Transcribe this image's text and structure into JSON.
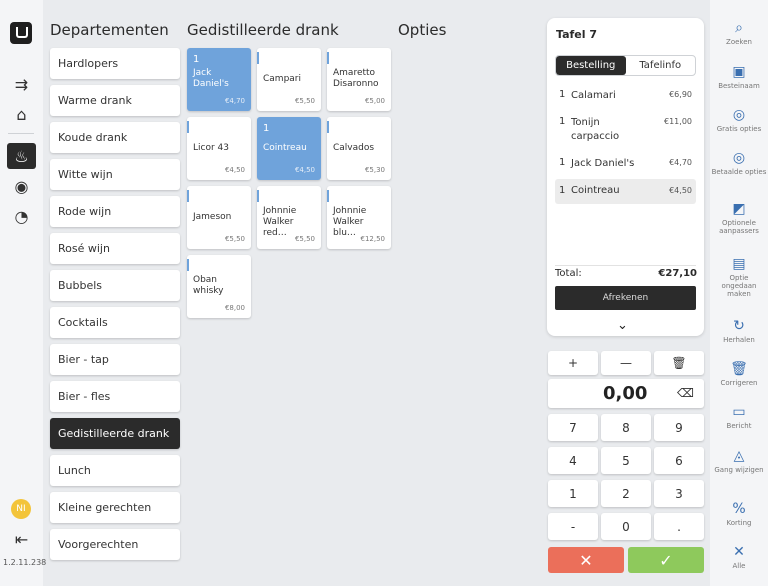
{
  "app": {
    "version": "1.2.11.238",
    "user_initials": "NI"
  },
  "leftnav": {
    "icons": [
      "logo-icon",
      "transfer-icon",
      "home-icon",
      "tables-icon",
      "eye-icon",
      "chart-icon",
      "logout-icon"
    ]
  },
  "departments": {
    "title": "Departementen",
    "items": [
      {
        "label": "Hardlopers"
      },
      {
        "label": "Warme drank"
      },
      {
        "label": "Koude drank"
      },
      {
        "label": "Witte wijn"
      },
      {
        "label": "Rode wijn"
      },
      {
        "label": "Rosé wijn"
      },
      {
        "label": "Bubbels"
      },
      {
        "label": "Cocktails"
      },
      {
        "label": "Bier - tap"
      },
      {
        "label": "Bier - fles"
      },
      {
        "label": "Gedistilleerde drank",
        "selected": true
      },
      {
        "label": "Lunch"
      },
      {
        "label": "Kleine gerechten"
      },
      {
        "label": "Voorgerechten"
      }
    ]
  },
  "products": {
    "title": "Gedistilleerde drank",
    "items": [
      {
        "qty": "1",
        "name": "Jack Daniel's",
        "price": "€4,70",
        "selected": true
      },
      {
        "qty": "",
        "name": "Campari",
        "price": "€5,50"
      },
      {
        "qty": "",
        "name": "Amaretto Disaronno",
        "price": "€5,00"
      },
      {
        "qty": "",
        "name": "Licor 43",
        "price": "€4,50"
      },
      {
        "qty": "1",
        "name": "Cointreau",
        "price": "€4,50",
        "selected": true
      },
      {
        "qty": "",
        "name": "Calvados",
        "price": "€5,30"
      },
      {
        "qty": "",
        "name": "Jameson",
        "price": "€5,50"
      },
      {
        "qty": "",
        "name": "Johnnie Walker red…",
        "price": "€5,50"
      },
      {
        "qty": "",
        "name": "Johnnie Walker blu…",
        "price": "€12,50"
      },
      {
        "qty": "",
        "name": "Oban whisky",
        "price": "€8,00"
      }
    ]
  },
  "options": {
    "title": "Opties"
  },
  "order": {
    "table_title": "Tafel 7",
    "tabs": [
      {
        "label": "Bestelling",
        "active": true
      },
      {
        "label": "Tafelinfo"
      }
    ],
    "lines": [
      {
        "qty": "1",
        "name": "Calamari",
        "price": "€6,90"
      },
      {
        "qty": "1",
        "name": "Tonijn carpaccio",
        "price": "€11,00"
      },
      {
        "qty": "1",
        "name": "Jack Daniel's",
        "price": "€4,70"
      },
      {
        "qty": "1",
        "name": "Cointreau",
        "price": "€4,50",
        "highlighted": true
      }
    ],
    "total_label": "Total:",
    "total_value": "€27,10",
    "checkout_label": "Afrekenen"
  },
  "keypad": {
    "display_value": "0,00",
    "controls": [
      "+",
      "—",
      "🗑"
    ],
    "keys": [
      "7",
      "8",
      "9",
      "4",
      "5",
      "6",
      "1",
      "2",
      "3",
      "-",
      "0",
      "."
    ],
    "cancel_symbol": "✕",
    "confirm_symbol": "✓"
  },
  "toolbar": {
    "items": [
      {
        "icon": "search-icon",
        "glyph": "⌕",
        "label": "Zoeken"
      },
      {
        "icon": "name-tag-icon",
        "glyph": "▣",
        "label": "Besteinaam"
      },
      {
        "icon": "free-options-icon",
        "glyph": "◎",
        "label": "Gratis opties"
      },
      {
        "icon": "paid-options-icon",
        "glyph": "◎",
        "label": "Betaalde opties"
      },
      {
        "icon": "adjust-options-icon",
        "glyph": "◩",
        "label": "Optionele aanpassers"
      },
      {
        "icon": "undo-option-icon",
        "glyph": "▤",
        "label": "Optie ongedaan maken"
      },
      {
        "icon": "repeat-icon",
        "glyph": "↻",
        "label": "Herhalen"
      },
      {
        "icon": "trash-icon",
        "glyph": "🗑",
        "label": "Corrigeren"
      },
      {
        "icon": "message-icon",
        "glyph": "▭",
        "label": "Bericht"
      },
      {
        "icon": "course-icon",
        "glyph": "◬",
        "label": "Gang wijzigen"
      },
      {
        "icon": "percent-icon",
        "glyph": "%",
        "label": "Korting"
      },
      {
        "icon": "close-icon",
        "glyph": "✕",
        "label": "Alle"
      }
    ]
  }
}
